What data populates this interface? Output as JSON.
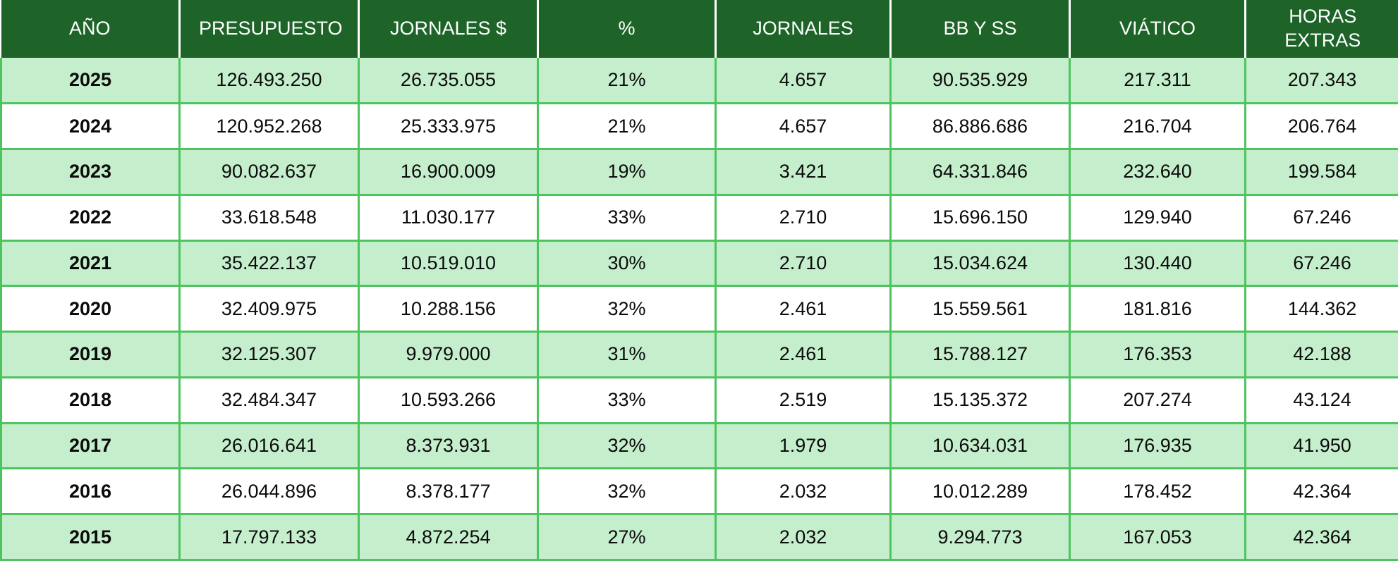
{
  "colors": {
    "header_bg": "#1E6428",
    "header_text": "#FFFFFF",
    "row_green": "#C5EECC",
    "row_white": "#FFFFFF",
    "border_green": "#4DC45E",
    "body_text": "#0B0B0B"
  },
  "chart_data": {
    "type": "table",
    "columns": [
      "AÑO",
      "PRESUPUESTO",
      "JORNALES $",
      "%",
      "JORNALES",
      "BB Y SS",
      "VIÁTICO",
      "HORAS EXTRAS"
    ],
    "rows": [
      [
        "2025",
        "126.493.250",
        "26.735.055",
        "21%",
        "4.657",
        "90.535.929",
        "217.311",
        "207.343"
      ],
      [
        "2024",
        "120.952.268",
        "25.333.975",
        "21%",
        "4.657",
        "86.886.686",
        "216.704",
        "206.764"
      ],
      [
        "2023",
        "90.082.637",
        "16.900.009",
        "19%",
        "3.421",
        "64.331.846",
        "232.640",
        "199.584"
      ],
      [
        "2022",
        "33.618.548",
        "11.030.177",
        "33%",
        "2.710",
        "15.696.150",
        "129.940",
        "67.246"
      ],
      [
        "2021",
        "35.422.137",
        "10.519.010",
        "30%",
        "2.710",
        "15.034.624",
        "130.440",
        "67.246"
      ],
      [
        "2020",
        "32.409.975",
        "10.288.156",
        "32%",
        "2.461",
        "15.559.561",
        "181.816",
        "144.362"
      ],
      [
        "2019",
        "32.125.307",
        "9.979.000",
        "31%",
        "2.461",
        "15.788.127",
        "176.353",
        "42.188"
      ],
      [
        "2018",
        "32.484.347",
        "10.593.266",
        "33%",
        "2.519",
        "15.135.372",
        "207.274",
        "43.124"
      ],
      [
        "2017",
        "26.016.641",
        "8.373.931",
        "32%",
        "1.979",
        "10.634.031",
        "176.935",
        "41.950"
      ],
      [
        "2016",
        "26.044.896",
        "8.378.177",
        "32%",
        "2.032",
        "10.012.289",
        "178.452",
        "42.364"
      ],
      [
        "2015",
        "17.797.133",
        "4.872.254",
        "27%",
        "2.032",
        "9.294.773",
        "167.053",
        "42.364"
      ]
    ]
  }
}
